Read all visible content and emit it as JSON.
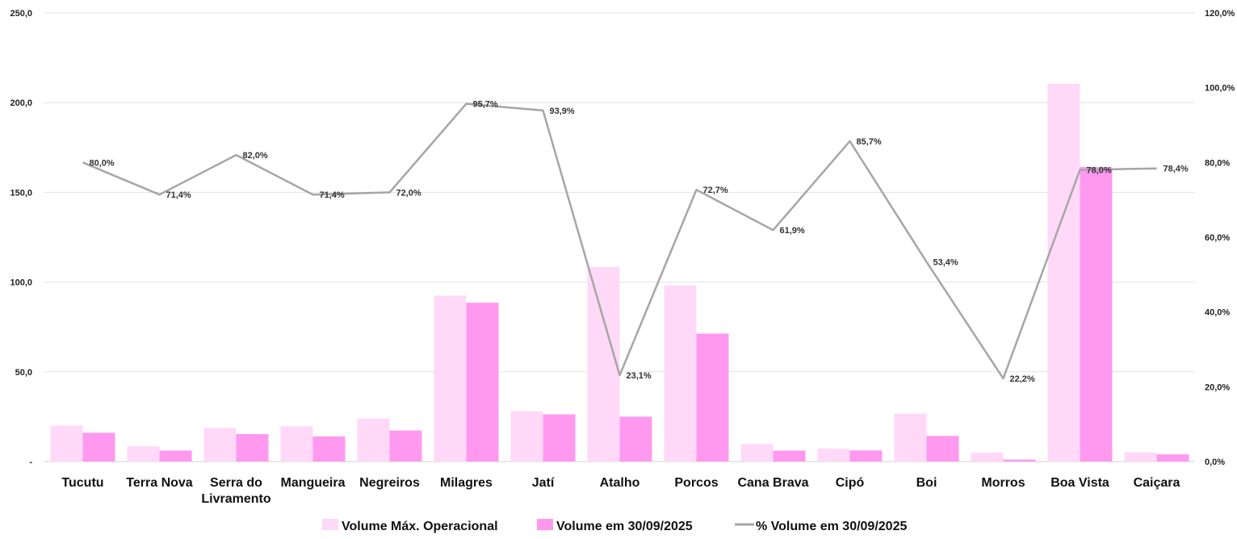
{
  "chart_data": {
    "type": "bar",
    "categories": [
      "Tucutu",
      "Terra Nova",
      "Serra do Livramento",
      "Mangueira",
      "Negreiros",
      "Milagres",
      "Jatí",
      "Atalho",
      "Porcos",
      "Cana Brava",
      "Cipó",
      "Boi",
      "Morros",
      "Boa Vista",
      "Caiçara"
    ],
    "category_lines": [
      [
        "Tucutu"
      ],
      [
        "Terra Nova"
      ],
      [
        "Serra do",
        "Livramento"
      ],
      [
        "Mangueira"
      ],
      [
        "Negreiros"
      ],
      [
        "Milagres"
      ],
      [
        "Jatí"
      ],
      [
        "Atalho"
      ],
      [
        "Porcos"
      ],
      [
        "Cana Brava"
      ],
      [
        "Cipó"
      ],
      [
        "Boi"
      ],
      [
        "Morros"
      ],
      [
        "Boa Vista"
      ],
      [
        "Caiçara"
      ]
    ],
    "series": [
      {
        "name": "Volume Máx. Operacional",
        "type": "bar",
        "axis": "left",
        "color": "#ffd9f7",
        "values": [
          20.0,
          8.5,
          18.7,
          19.6,
          24.0,
          92.4,
          28.0,
          108.4,
          98.0,
          9.8,
          7.2,
          26.7,
          5.0,
          210.5,
          5.1
        ]
      },
      {
        "name": "Volume em 30/09/2025",
        "type": "bar",
        "axis": "left",
        "color": "#ff99f0",
        "values": [
          16.0,
          6.1,
          15.3,
          14.0,
          17.3,
          88.5,
          26.3,
          25.0,
          71.3,
          6.1,
          6.2,
          14.3,
          1.1,
          164.2,
          4.0
        ]
      },
      {
        "name": "% Volume em 30/09/2025",
        "type": "line",
        "axis": "right",
        "color": "#a6a6a6",
        "values": [
          80.0,
          71.4,
          82.0,
          71.4,
          72.0,
          95.7,
          93.9,
          23.1,
          72.7,
          61.9,
          85.7,
          53.4,
          22.2,
          78.0,
          78.4
        ],
        "labels": [
          "80,0%",
          "71,4%",
          "82,0%",
          "71,4%",
          "72,0%",
          "95,7%",
          "93,9%",
          "23,1%",
          "72,7%",
          "61,9%",
          "85,7%",
          "53,4%",
          "22,2%",
          "78,0%",
          "78,4%"
        ]
      }
    ],
    "y_left": {
      "ylim": [
        0,
        250
      ],
      "ticks": [
        0,
        50,
        100,
        150,
        200,
        250
      ],
      "tick_labels": [
        "-",
        "50,0",
        "100,0",
        "150,0",
        "200,0",
        "250,0"
      ]
    },
    "y_right": {
      "ylim": [
        0,
        120
      ],
      "ticks": [
        0,
        20,
        40,
        60,
        80,
        100,
        120
      ],
      "tick_labels": [
        "0,0%",
        "20,0%",
        "40,0%",
        "60,0%",
        "80,0%",
        "100,0%",
        "120,0%"
      ]
    },
    "grid": true,
    "legend": "bottom",
    "title": "",
    "xlabel": "",
    "ylabel": ""
  }
}
